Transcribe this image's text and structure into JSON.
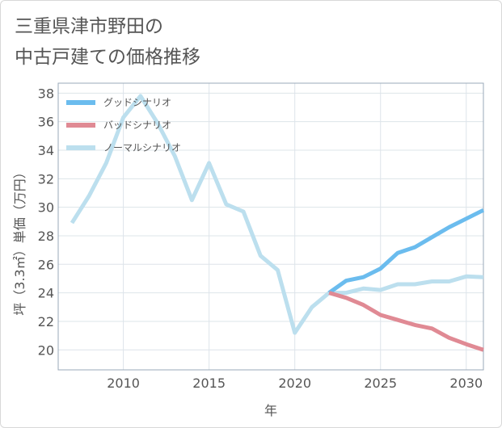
{
  "title": {
    "line1": "三重県津市野田の",
    "line2": "中古戸建ての価格推移"
  },
  "chart_data": {
    "type": "line",
    "xlabel": "年",
    "ylabel": "坪（3.3㎡）単価（万円）",
    "xlim": [
      2006.2,
      2031
    ],
    "ylim": [
      18.6,
      38.7
    ],
    "x_ticks": [
      2010,
      2015,
      2020,
      2025,
      2030
    ],
    "y_ticks": [
      20,
      22,
      24,
      26,
      28,
      30,
      32,
      34,
      36,
      38
    ],
    "grid": true,
    "legend_position": "top-left",
    "series": [
      {
        "name": "グッドシナリオ",
        "color": "#6bbcee",
        "x": [
          2022,
          2023,
          2024,
          2025,
          2026,
          2027,
          2028,
          2029,
          2030,
          2031
        ],
        "y": [
          24.0,
          24.85,
          25.1,
          25.7,
          26.8,
          27.2,
          27.9,
          28.6,
          29.2,
          29.8
        ]
      },
      {
        "name": "バッドシナリオ",
        "color": "#e08a94",
        "x": [
          2022,
          2023,
          2024,
          2025,
          2026,
          2027,
          2028,
          2029,
          2030,
          2031
        ],
        "y": [
          24.0,
          23.65,
          23.15,
          22.45,
          22.1,
          21.75,
          21.5,
          20.85,
          20.4,
          20.0
        ]
      },
      {
        "name": "ノーマルシナリオ",
        "color": "#bcdfee",
        "x": [
          2007,
          2008,
          2009,
          2010,
          2011,
          2012,
          2013,
          2014,
          2015,
          2016,
          2017,
          2018,
          2019,
          2020,
          2021,
          2022,
          2023,
          2024,
          2025,
          2026,
          2027,
          2028,
          2029,
          2030,
          2031
        ],
        "y": [
          28.9,
          30.8,
          33.1,
          36.3,
          37.8,
          35.9,
          33.6,
          30.5,
          33.1,
          30.2,
          29.7,
          26.6,
          25.6,
          21.2,
          23.0,
          24.0,
          24.0,
          24.3,
          24.2,
          24.6,
          24.6,
          24.8,
          24.8,
          25.15,
          25.1
        ]
      }
    ]
  }
}
